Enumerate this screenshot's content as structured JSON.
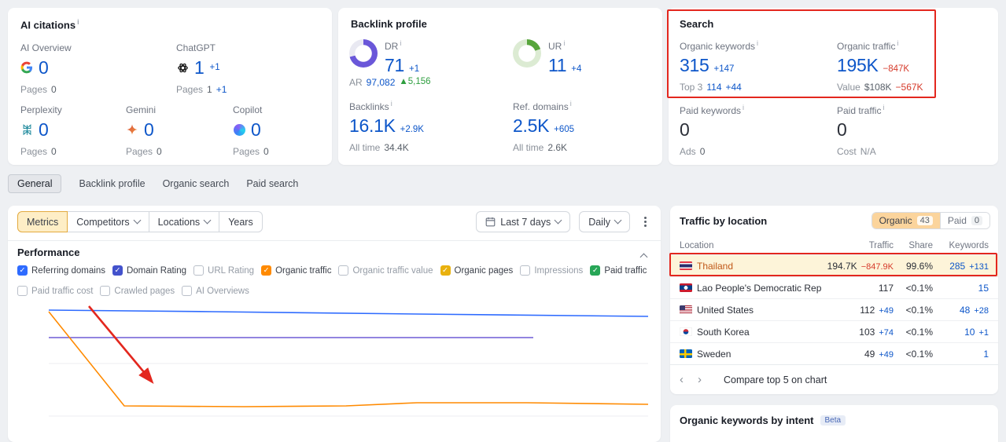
{
  "colors": {
    "accent_blue": "#0d56c9",
    "negative_red": "#d63a2a",
    "positive_green": "#2e9e3f",
    "organic_orange": "#ff8a00",
    "domain_rating_purple": "#6a57d9",
    "ur_green": "#57a53b",
    "annotation_red": "#e3271e"
  },
  "icons": {
    "info": "i",
    "check": "✓",
    "prev": "‹",
    "next": "›"
  },
  "ai_citations": {
    "title": "AI citations",
    "pages_label": "Pages",
    "items": [
      {
        "label": "AI Overview",
        "value": "0",
        "change": "",
        "pages_value": "0",
        "pages_change": ""
      },
      {
        "label": "ChatGPT",
        "value": "1",
        "change": "+1",
        "pages_value": "1",
        "pages_change": "+1"
      },
      {
        "label": "Perplexity",
        "value": "0",
        "change": "",
        "pages_value": "0",
        "pages_change": ""
      },
      {
        "label": "Gemini",
        "value": "0",
        "change": "",
        "pages_value": "0",
        "pages_change": ""
      },
      {
        "label": "Copilot",
        "value": "0",
        "change": "",
        "pages_value": "0",
        "pages_change": ""
      }
    ]
  },
  "backlink_profile": {
    "title": "Backlink profile",
    "alltime_label": "All time",
    "dr": {
      "label": "DR",
      "value": "71",
      "change": "+1",
      "percent": 71
    },
    "ar": {
      "label": "AR",
      "value": "97,082",
      "change": "▲5,156"
    },
    "ur": {
      "label": "UR",
      "value": "11",
      "change": "+4",
      "percent": 11
    },
    "backlinks": {
      "label": "Backlinks",
      "value": "16.1K",
      "change": "+2.9K",
      "alltime_value": "34.4K"
    },
    "ref_domains": {
      "label": "Ref. domains",
      "value": "2.5K",
      "change": "+605",
      "alltime_value": "2.6K"
    }
  },
  "search": {
    "title": "Search",
    "organic_keywords": {
      "label": "Organic keywords",
      "value": "315",
      "change": "+147",
      "sub_label": "Top 3",
      "sub_value": "114",
      "sub_change": "+44"
    },
    "organic_traffic": {
      "label": "Organic traffic",
      "value": "195K",
      "change": "−847K",
      "sub_label": "Value",
      "sub_value": "$108K",
      "sub_change": "−567K"
    },
    "paid_keywords": {
      "label": "Paid keywords",
      "value": "0",
      "sub_label": "Ads",
      "sub_value": "0"
    },
    "paid_traffic": {
      "label": "Paid traffic",
      "value": "0",
      "sub_label": "Cost",
      "sub_value": "N/A"
    }
  },
  "tabs": [
    {
      "label": "General",
      "active": true
    },
    {
      "label": "Backlink profile",
      "active": false
    },
    {
      "label": "Organic search",
      "active": false
    },
    {
      "label": "Paid search",
      "active": false
    }
  ],
  "toolbar": {
    "metrics": "Metrics",
    "competitors": "Competitors",
    "locations": "Locations",
    "years": "Years",
    "date_range": "Last 7 days",
    "granularity": "Daily"
  },
  "performance": {
    "title": "Performance",
    "metrics": [
      {
        "label": "Referring domains",
        "checked": true,
        "color": "#2e6bff"
      },
      {
        "label": "Domain Rating",
        "checked": true,
        "color": "#4352cc"
      },
      {
        "label": "URL Rating",
        "checked": false
      },
      {
        "label": "Organic traffic",
        "checked": true,
        "color": "#ff8a00"
      },
      {
        "label": "Organic traffic value",
        "checked": false
      },
      {
        "label": "Organic pages",
        "checked": true,
        "color": "#e9b10e"
      },
      {
        "label": "Impressions",
        "checked": false
      },
      {
        "label": "Paid traffic",
        "checked": true,
        "color": "#27a657"
      },
      {
        "label": "Paid traffic cost",
        "checked": false
      },
      {
        "label": "Crawled pages",
        "checked": false
      },
      {
        "label": "AI Overviews",
        "checked": false
      }
    ]
  },
  "chart_data": {
    "type": "line",
    "title": "Performance",
    "xlabel": "",
    "ylabel": "",
    "axes_visible": false,
    "series": [
      {
        "name": "Referring domains",
        "color": "#2e6bff",
        "points": [
          [
            52,
            11
          ],
          [
            260,
            13
          ],
          [
            520,
            16
          ],
          [
            814,
            19
          ]
        ]
      },
      {
        "name": "Domain Rating",
        "color": "#6f5bd6",
        "points": [
          [
            52,
            46
          ],
          [
            668,
            46
          ]
        ]
      },
      {
        "name": "Organic traffic",
        "color": "#ff8a00",
        "points": [
          [
            52,
            13
          ],
          [
            148,
            133
          ],
          [
            300,
            134
          ],
          [
            430,
            133
          ],
          [
            520,
            129
          ],
          [
            660,
            129
          ],
          [
            814,
            131
          ]
        ]
      }
    ],
    "note": "No axis labels visible; points are normalized to the plot area. Organic traffic drops steeply near the start; a red annotation arrow points at the drop."
  },
  "traffic_by_location": {
    "title": "Traffic by location",
    "organic_toggle": {
      "label": "Organic",
      "count": "43"
    },
    "paid_toggle": {
      "label": "Paid",
      "count": "0"
    },
    "columns": [
      "Location",
      "Traffic",
      "Share",
      "Keywords"
    ],
    "rows": [
      {
        "location": "Thailand",
        "traffic": "194.7K",
        "traffic_change": "−847.9K",
        "share": "99.6%",
        "keywords": "285",
        "keywords_change": "+131",
        "highlighted": true
      },
      {
        "location": "Lao People's Democratic Rep",
        "traffic": "117",
        "traffic_change": "",
        "share": "<0.1%",
        "keywords": "15",
        "keywords_change": "",
        "highlighted": false
      },
      {
        "location": "United States",
        "traffic": "112",
        "traffic_change": "+49",
        "share": "<0.1%",
        "keywords": "48",
        "keywords_change": "+28",
        "highlighted": false
      },
      {
        "location": "South Korea",
        "traffic": "103",
        "traffic_change": "+74",
        "share": "<0.1%",
        "keywords": "10",
        "keywords_change": "+1",
        "highlighted": false
      },
      {
        "location": "Sweden",
        "traffic": "49",
        "traffic_change": "+49",
        "share": "<0.1%",
        "keywords": "1",
        "keywords_change": "",
        "highlighted": false
      }
    ],
    "footer": {
      "compare_label": "Compare top 5 on chart"
    }
  },
  "intent_card": {
    "title": "Organic keywords by intent",
    "badge": "Beta"
  }
}
